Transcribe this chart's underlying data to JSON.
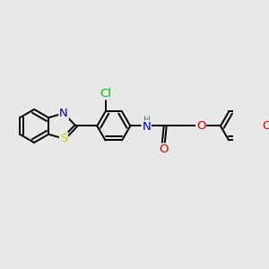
{
  "bg_color": "#e8e8e8",
  "bond_color": "#000000",
  "bond_width": 1.4,
  "atom_colors": {
    "S": "#cccc00",
    "N": "#0000cc",
    "O": "#cc0000",
    "Cl": "#00bb00",
    "H": "#558888",
    "C": "#000000"
  },
  "font_size": 8.5,
  "dbo": 0.055
}
